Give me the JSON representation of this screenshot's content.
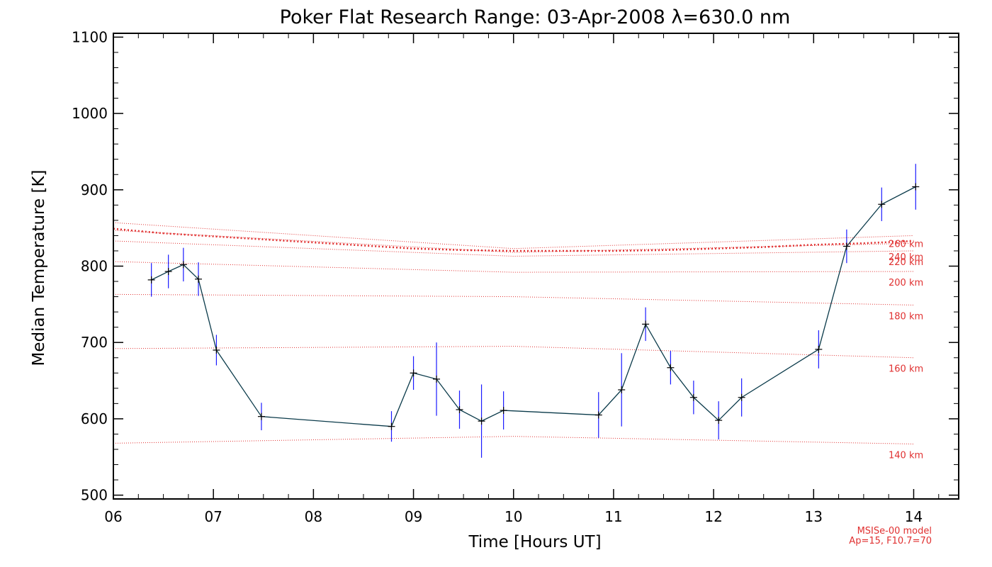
{
  "chart_data": {
    "type": "line",
    "title": "Poker Flat Research Range: 03-Apr-2008 λ=630.0 nm",
    "xlabel": "Time [Hours UT]",
    "ylabel": "Median Temperature [K]",
    "xlim": [
      6.0,
      14.45
    ],
    "ylim": [
      495,
      1105
    ],
    "x_ticks": [
      6,
      7,
      8,
      9,
      10,
      11,
      12,
      13,
      14
    ],
    "x_tick_labels": [
      "06",
      "07",
      "08",
      "09",
      "10",
      "11",
      "12",
      "13",
      "14"
    ],
    "y_ticks": [
      500,
      600,
      700,
      800,
      900,
      1000,
      1100
    ],
    "y_tick_labels": [
      "500",
      "600",
      "700",
      "800",
      "900",
      "1000",
      "1100"
    ],
    "grid": false,
    "colors": {
      "series": "#0a3a4a",
      "error": "#1a1aff",
      "model": "#e03030",
      "axis": "#000000"
    },
    "series": [
      {
        "x": [
          6.38,
          6.55,
          6.7,
          6.85,
          7.03,
          7.48,
          8.78,
          9.0,
          9.23,
          9.46,
          9.68,
          9.9,
          10.85,
          11.08,
          11.32,
          11.57,
          11.8,
          12.05,
          12.28,
          13.05,
          13.33,
          13.68,
          14.02
        ],
        "y": [
          782,
          793,
          802,
          783,
          690,
          603,
          590,
          660,
          652,
          612,
          597,
          611,
          605,
          638,
          724,
          667,
          628,
          598,
          628,
          691,
          826,
          881,
          904
        ],
        "err": [
          22,
          22,
          22,
          22,
          20,
          18,
          20,
          22,
          48,
          25,
          48,
          25,
          30,
          48,
          22,
          22,
          22,
          25,
          25,
          25,
          22,
          22,
          30
        ]
      }
    ],
    "model_curves": [
      {
        "label": "140 km",
        "x": [
          6.0,
          10.0,
          14.0
        ],
        "y": [
          568,
          577,
          567
        ]
      },
      {
        "label": "160 km",
        "x": [
          6.0,
          10.0,
          14.0
        ],
        "y": [
          692,
          695,
          680
        ]
      },
      {
        "label": "180 km",
        "x": [
          6.0,
          10.0,
          14.0
        ],
        "y": [
          763,
          760,
          749
        ]
      },
      {
        "label": "200 km",
        "x": [
          6.0,
          10.0,
          14.0
        ],
        "y": [
          806,
          792,
          793
        ]
      },
      {
        "label": "220 km",
        "x": [
          6.0,
          10.0,
          14.0
        ],
        "y": [
          833,
          813,
          820
        ]
      },
      {
        "label": "240 km",
        "x": [
          6.0,
          10.0,
          14.0
        ],
        "y": [
          847,
          818,
          830
        ]
      },
      {
        "label": "260 km",
        "x": [
          6.0,
          10.0,
          14.0
        ],
        "y": [
          857,
          823,
          840
        ]
      }
    ],
    "model_average": {
      "x": [
        6.0,
        6.5,
        7.0,
        7.5,
        8.0,
        8.5,
        9.0,
        9.5,
        10.0,
        10.5,
        11.0,
        11.5,
        12.0,
        12.5,
        13.0,
        13.5,
        14.0
      ],
      "y": [
        849,
        843,
        839,
        835,
        831,
        827,
        823,
        821,
        820,
        820,
        820,
        821,
        823,
        825,
        828,
        830,
        833
      ]
    },
    "model_note": [
      "MSISe-00 model",
      "Ap=15, F10.7=70"
    ]
  }
}
